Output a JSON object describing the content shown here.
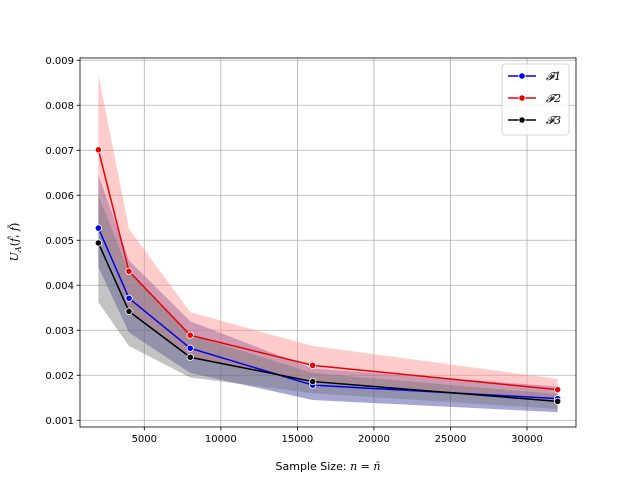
{
  "chart_data": {
    "type": "line",
    "title": "",
    "xlabel": "Sample Size: n = ñ",
    "ylabel": "U_A(f̂, f̃)",
    "xlim": [
      800,
      33200
    ],
    "ylim": [
      0.00085,
      0.00905
    ],
    "xticks": [
      5000,
      10000,
      15000,
      20000,
      25000,
      30000
    ],
    "xtick_labels": [
      "5000",
      "10000",
      "15000",
      "20000",
      "25000",
      "30000"
    ],
    "yticks": [
      0.001,
      0.002,
      0.003,
      0.004,
      0.005,
      0.006,
      0.007,
      0.008,
      0.009
    ],
    "ytick_labels": [
      "0.001",
      "0.002",
      "0.003",
      "0.004",
      "0.005",
      "0.006",
      "0.007",
      "0.008",
      "0.009"
    ],
    "grid": true,
    "legend_position": "top-right",
    "x": [
      2000,
      4000,
      8000,
      16000,
      32000
    ],
    "series": [
      {
        "name": "𝓕1",
        "color": "#0000ee",
        "band_color": "#3a3aa0",
        "values": [
          0.00527,
          0.00371,
          0.0026,
          0.00178,
          0.00148
        ],
        "lower": [
          0.0044,
          0.00295,
          0.00205,
          0.00145,
          0.00118
        ],
        "upper": [
          0.00645,
          0.00455,
          0.0032,
          0.00215,
          0.00175
        ]
      },
      {
        "name": "𝓕2",
        "color": "#ee0000",
        "band_color": "#ff8c8c",
        "values": [
          0.00701,
          0.00431,
          0.00289,
          0.00222,
          0.00168
        ],
        "lower": [
          0.0054,
          0.00345,
          0.0024,
          0.00185,
          0.00145
        ],
        "upper": [
          0.00868,
          0.00525,
          0.0034,
          0.00265,
          0.00192
        ]
      },
      {
        "name": "𝓕3",
        "color": "#000000",
        "band_color": "#7a7a7a",
        "values": [
          0.00494,
          0.00342,
          0.0024,
          0.00186,
          0.00142
        ],
        "lower": [
          0.00362,
          0.00265,
          0.00195,
          0.0016,
          0.00125
        ],
        "upper": [
          0.006,
          0.0043,
          0.0029,
          0.00205,
          0.00158
        ]
      }
    ]
  }
}
